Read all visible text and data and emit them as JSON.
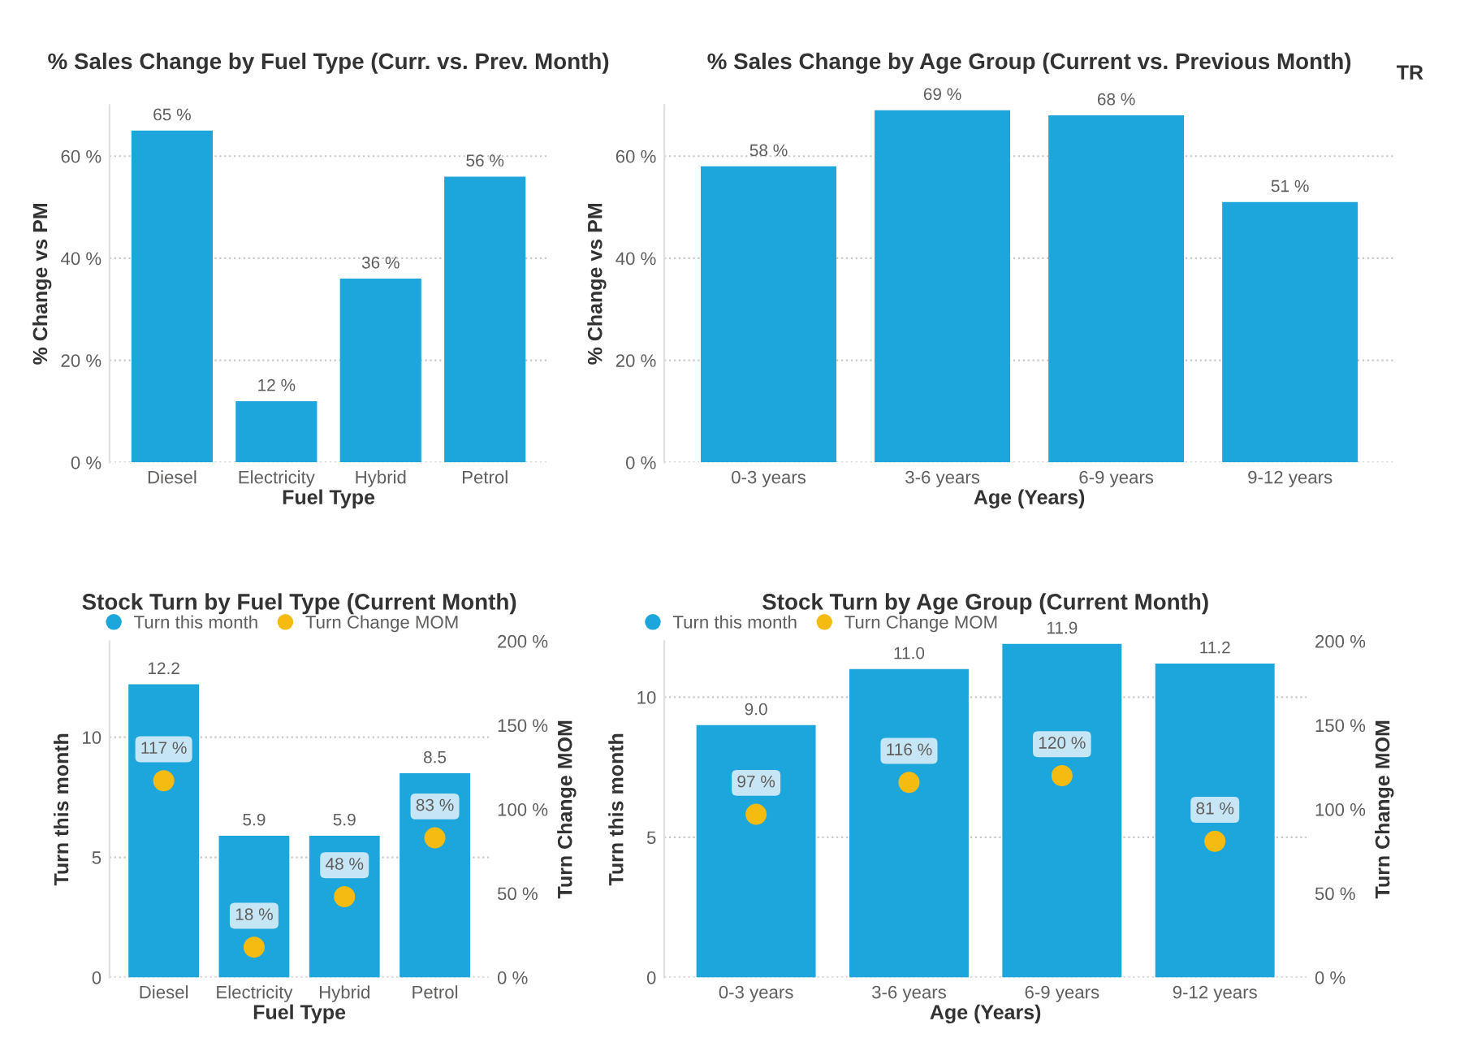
{
  "chart_data": [
    {
      "type": "bar",
      "title": "% Sales Change by Fuel Type (Curr. vs. Prev. Month)",
      "xlabel": "Fuel Type",
      "ylabel": "% Change vs PM",
      "categories": [
        "Diesel",
        "Electricity",
        "Hybrid",
        "Petrol"
      ],
      "series": [
        {
          "color": "#1ca6dc",
          "values": [
            65,
            12,
            36,
            56
          ],
          "value_labels": [
            "65 %",
            "12 %",
            "36 %",
            "56 %"
          ]
        }
      ],
      "ylim": [
        0,
        70
      ],
      "yticks": [
        {
          "value": 0,
          "label": "0 %"
        },
        {
          "value": 20,
          "label": "20 %"
        },
        {
          "value": 40,
          "label": "40 %"
        },
        {
          "value": 60,
          "label": "60 %"
        }
      ],
      "grid": "y",
      "legend": false
    },
    {
      "type": "bar",
      "title": "% Sales Change by Age Group (Current vs. Previous Month)",
      "xlabel": "Age (Years)",
      "ylabel": "% Change vs PM",
      "categories": [
        "0-3 years",
        "3-6 years",
        "6-9 years",
        "9-12 years"
      ],
      "series": [
        {
          "color": "#1ca6dc",
          "values": [
            58,
            69,
            68,
            51
          ],
          "value_labels": [
            "58 %",
            "69 %",
            "68 %",
            "51 %"
          ]
        }
      ],
      "ylim": [
        0,
        70
      ],
      "yticks": [
        {
          "value": 0,
          "label": "0 %"
        },
        {
          "value": 20,
          "label": "20 %"
        },
        {
          "value": 40,
          "label": "40 %"
        },
        {
          "value": 60,
          "label": "60 %"
        }
      ],
      "grid": "y",
      "legend": false,
      "annotations": [
        "TR"
      ]
    },
    {
      "type": "bar",
      "title": "Stock Turn by Fuel Type (Current Month)",
      "xlabel": "Fuel Type",
      "ylabel": "Turn this month",
      "y2label": "Turn Change MOM",
      "categories": [
        "Diesel",
        "Electricity",
        "Hybrid",
        "Petrol"
      ],
      "series": [
        {
          "name": "Turn this month",
          "type": "bar",
          "color": "#1ca6dc",
          "values": [
            12.2,
            5.9,
            5.9,
            8.5
          ],
          "value_labels": [
            "12.2",
            "5.9",
            "5.9",
            "8.5"
          ]
        },
        {
          "name": "Turn Change MOM",
          "type": "scatter",
          "axis": "y2",
          "color": "#f5bb11",
          "x": [
            "Diesel",
            "Electricity",
            "Hybrid",
            "Petrol"
          ],
          "values": [
            117,
            18,
            48,
            83
          ],
          "value_labels": [
            "117 %",
            "18 %",
            "48 %",
            "83 %"
          ]
        }
      ],
      "ylim": [
        0,
        14
      ],
      "yticks": [
        0,
        5,
        10
      ],
      "y2lim": [
        0,
        200
      ],
      "y2ticks": [
        {
          "value": 0,
          "label": "0 %"
        },
        {
          "value": 50,
          "label": "50 %"
        },
        {
          "value": 100,
          "label": "100 %"
        },
        {
          "value": 150,
          "label": "150 %"
        },
        {
          "value": 200,
          "label": "200 %"
        }
      ],
      "grid": "y",
      "legend": "top left",
      "marker": "circle"
    },
    {
      "type": "bar",
      "title": "Stock Turn by Age Group (Current Month)",
      "xlabel": "Age (Years)",
      "ylabel": "Turn this month",
      "y2label": "Turn Change MOM",
      "categories": [
        "0-3 years",
        "3-6 years",
        "6-9 years",
        "9-12 years"
      ],
      "series": [
        {
          "name": "Turn this month",
          "type": "bar",
          "color": "#1ca6dc",
          "values": [
            9.0,
            11.0,
            11.9,
            11.2
          ],
          "value_labels": [
            "9.0",
            "11.0",
            "11.9",
            "11.2"
          ]
        },
        {
          "name": "Turn Change MOM",
          "type": "scatter",
          "axis": "y2",
          "color": "#f5bb11",
          "x": [
            "0-3 years",
            "3-6 years",
            "6-9 years",
            "9-12 years"
          ],
          "values": [
            97,
            116,
            120,
            81
          ],
          "value_labels": [
            "97 %",
            "116 %",
            "120 %",
            "81 %"
          ]
        }
      ],
      "ylim": [
        0,
        12
      ],
      "yticks": [
        0,
        5,
        10
      ],
      "y2lim": [
        0,
        200
      ],
      "y2ticks": [
        {
          "value": 0,
          "label": "0 %"
        },
        {
          "value": 50,
          "label": "50 %"
        },
        {
          "value": 100,
          "label": "100 %"
        },
        {
          "value": 150,
          "label": "150 %"
        },
        {
          "value": 200,
          "label": "200 %"
        }
      ],
      "grid": "y",
      "legend": "top left",
      "marker": "circle"
    }
  ]
}
